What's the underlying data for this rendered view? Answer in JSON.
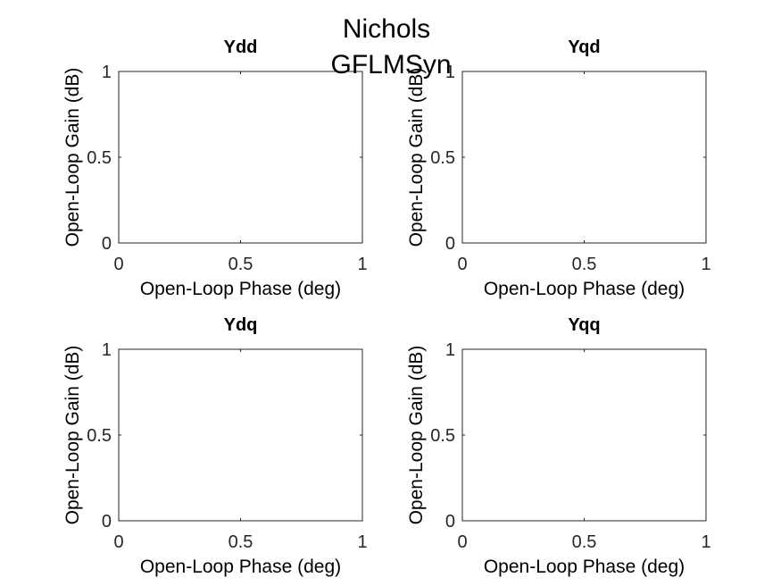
{
  "figure": {
    "title_lines": [
      "Nichols",
      "GFLMSyn"
    ]
  },
  "colors": {
    "background": "#ffffff",
    "axis": "#262626",
    "text": "#000000"
  },
  "chart_data": [
    {
      "type": "line",
      "title": "Ydd",
      "xlabel": "Open-Loop Phase (deg)",
      "ylabel": "Open-Loop Gain (dB)",
      "xlim": [
        0,
        1
      ],
      "ylim": [
        0,
        1
      ],
      "xticks": [
        "0",
        "0.5",
        "1"
      ],
      "yticks": [
        "0",
        "0.5",
        "1"
      ],
      "grid": false,
      "series": []
    },
    {
      "type": "line",
      "title": "Yqd",
      "xlabel": "Open-Loop Phase (deg)",
      "ylabel": "Open-Loop Gain (dB)",
      "xlim": [
        0,
        1
      ],
      "ylim": [
        0,
        1
      ],
      "xticks": [
        "0",
        "0.5",
        "1"
      ],
      "yticks": [
        "0",
        "0.5",
        "1"
      ],
      "grid": false,
      "series": []
    },
    {
      "type": "line",
      "title": "Ydq",
      "xlabel": "Open-Loop Phase (deg)",
      "ylabel": "Open-Loop Gain (dB)",
      "xlim": [
        0,
        1
      ],
      "ylim": [
        0,
        1
      ],
      "xticks": [
        "0",
        "0.5",
        "1"
      ],
      "yticks": [
        "0",
        "0.5",
        "1"
      ],
      "grid": false,
      "series": []
    },
    {
      "type": "line",
      "title": "Yqq",
      "xlabel": "Open-Loop Phase (deg)",
      "ylabel": "Open-Loop Gain (dB)",
      "xlim": [
        0,
        1
      ],
      "ylim": [
        0,
        1
      ],
      "xticks": [
        "0",
        "0.5",
        "1"
      ],
      "yticks": [
        "0",
        "0.5",
        "1"
      ],
      "grid": false,
      "series": []
    }
  ]
}
